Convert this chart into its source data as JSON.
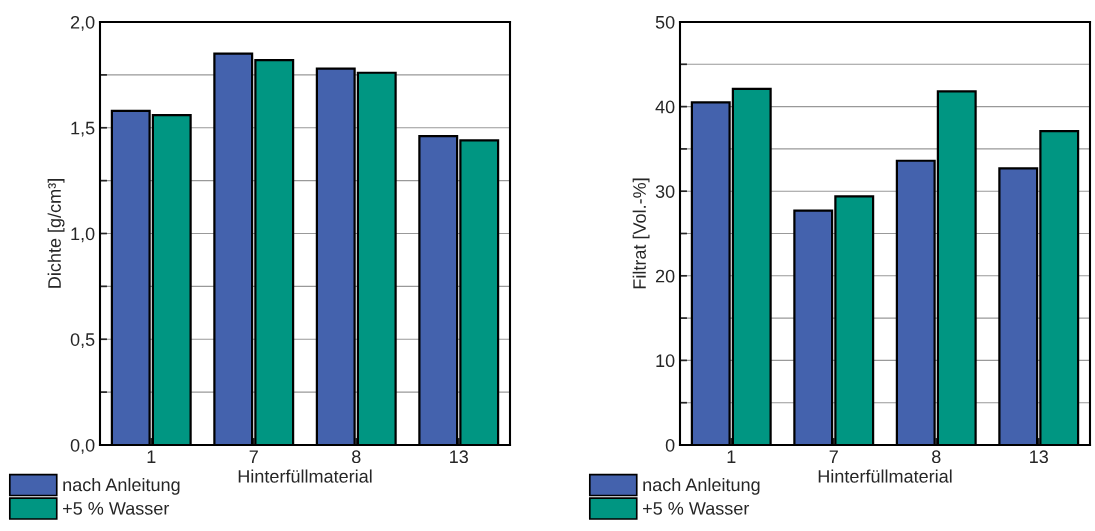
{
  "chart_data": [
    {
      "type": "bar",
      "categories": [
        "1",
        "7",
        "8",
        "13"
      ],
      "xlabel": "Hinterfüllmaterial",
      "ylabel": "Dichte [g/cm³]",
      "series": [
        {
          "name": "nach Anleitung",
          "color": "#4462ad",
          "values": [
            1.58,
            1.85,
            1.78,
            1.46
          ]
        },
        {
          "name": "+5 % Wasser",
          "color": "#009682",
          "values": [
            1.56,
            1.82,
            1.76,
            1.44
          ]
        }
      ],
      "ylim": [
        0,
        2.0
      ],
      "yticks": [
        {
          "value": 0,
          "label": "0,0"
        },
        {
          "value": 0.25,
          "label": null
        },
        {
          "value": 0.5,
          "label": "0,5"
        },
        {
          "value": 0.75,
          "label": null
        },
        {
          "value": 1.0,
          "label": "1,0"
        },
        {
          "value": 1.25,
          "label": null
        },
        {
          "value": 1.5,
          "label": "1,5"
        },
        {
          "value": 1.75,
          "label": null
        },
        {
          "value": 2.0,
          "label": "2,0"
        }
      ],
      "grid": "y",
      "legend": "bottom left"
    },
    {
      "type": "bar",
      "categories": [
        "1",
        "7",
        "8",
        "13"
      ],
      "xlabel": "Hinterfüllmaterial",
      "ylabel": "Filtrat [Vol.-%]",
      "series": [
        {
          "name": "nach Anleitung",
          "color": "#4462ad",
          "values": [
            40.5,
            27.7,
            33.6,
            32.7
          ]
        },
        {
          "name": "+5 % Wasser",
          "color": "#009682",
          "values": [
            42.1,
            29.4,
            41.8,
            37.1
          ]
        }
      ],
      "ylim": [
        0,
        50
      ],
      "yticks": [
        0,
        {
          "value": 5,
          "label": null
        },
        10,
        {
          "value": 15,
          "label": null
        },
        20,
        {
          "value": 25,
          "label": null
        },
        30,
        {
          "value": 35,
          "label": null
        },
        40,
        {
          "value": 45,
          "label": null
        },
        50
      ],
      "grid": "y",
      "legend": "bottom left"
    }
  ]
}
